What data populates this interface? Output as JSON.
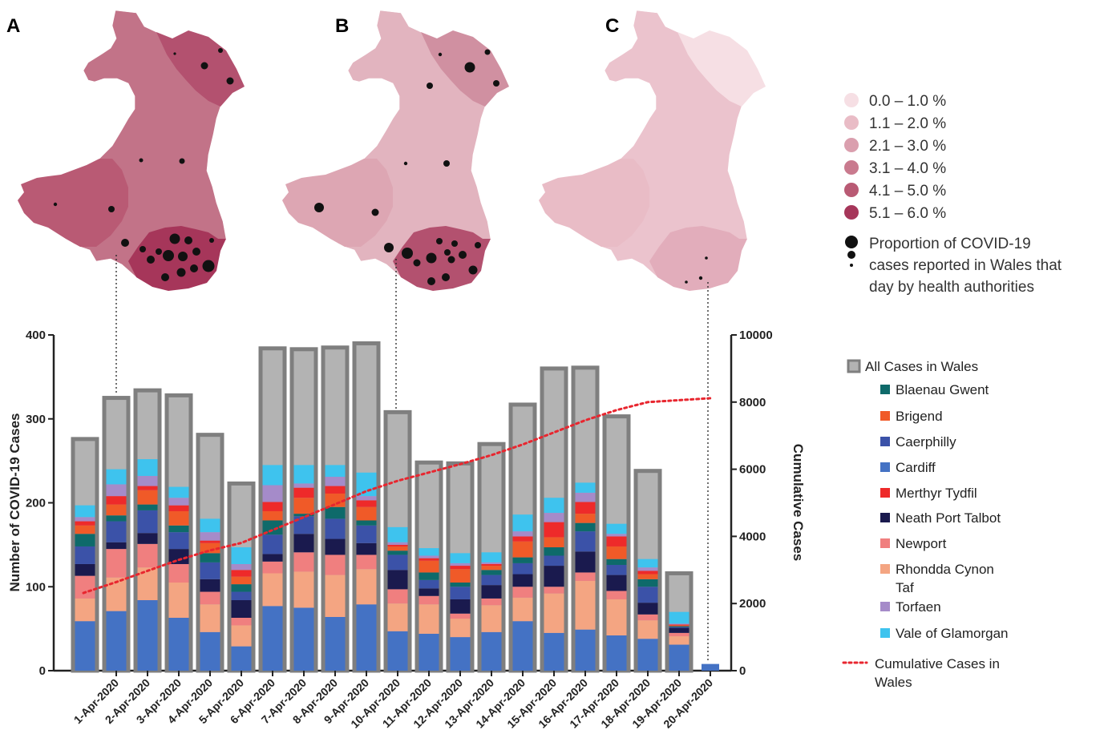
{
  "panels": [
    "A",
    "B",
    "C"
  ],
  "map_legend": {
    "bins": [
      {
        "label": "0.0 – 1.0 %",
        "color": "#f6dfe4"
      },
      {
        "label": "1.1 – 2.0 %",
        "color": "#e9bcc6"
      },
      {
        "label": "2.1 – 3.0 %",
        "color": "#da9fae"
      },
      {
        "label": "3.1 – 4.0 %",
        "color": "#c97a8e"
      },
      {
        "label": "4.1 – 5.0 %",
        "color": "#b95a74"
      },
      {
        "label": "5.1 – 6.0 %",
        "color": "#a6365a"
      }
    ],
    "proportion_label": [
      "Proportion of COVID-19",
      "cases reported in Wales that",
      "day by health authorities"
    ]
  },
  "chart_data": {
    "type": "bar",
    "categories": [
      "1-Apr-2020",
      "2-Apr-2020",
      "3-Apr-2020",
      "4-Apr-2020",
      "5-Apr-2020",
      "6-Apr-2020",
      "7-Apr-2020",
      "8-Apr-2020",
      "9-Apr-2020",
      "10-Apr-2020",
      "11-Apr-2020",
      "12-Apr-2020",
      "13-Apr-2020",
      "14-Apr-2020",
      "15-Apr-2020",
      "16-Apr-2020",
      "17-Apr-2020",
      "18-Apr-2020",
      "19-Apr-2020",
      "20-Apr-2020"
    ],
    "ylabel": "Number of COVID-19 Cases",
    "y2label": "Cumulative Cases",
    "ylim": [
      0,
      400
    ],
    "y2lim": [
      0,
      10000
    ],
    "yticks": [
      0,
      100,
      200,
      300,
      400
    ],
    "y2ticks": [
      0,
      2000,
      4000,
      6000,
      8000,
      10000
    ],
    "total_series": {
      "name": "All Cases in Wales",
      "color": "#b3b3b3",
      "border": "#7f7f7f",
      "values": [
        276,
        325,
        334,
        328,
        281,
        223,
        384,
        383,
        385,
        390,
        308,
        248,
        247,
        270,
        317,
        360,
        361,
        303,
        238,
        116
      ]
    },
    "series": [
      {
        "name": "Cardiff",
        "color": "#4472c4",
        "values": [
          59,
          71,
          84,
          63,
          46,
          29,
          77,
          75,
          64,
          79,
          47,
          44,
          40,
          46,
          59,
          45,
          49,
          42,
          38,
          31
        ]
      },
      {
        "name": "Rhondda Cynon Taf",
        "color": "#f4a582",
        "values": [
          27,
          40,
          39,
          42,
          33,
          25,
          39,
          43,
          50,
          42,
          33,
          35,
          22,
          32,
          28,
          47,
          58,
          43,
          22,
          10
        ]
      },
      {
        "name": "Newport",
        "color": "#f07f7f",
        "values": [
          27,
          34,
          28,
          22,
          15,
          9,
          14,
          23,
          24,
          17,
          17,
          10,
          6,
          8,
          13,
          8,
          10,
          10,
          7,
          4
        ]
      },
      {
        "name": "Neath Port Talbot",
        "color": "#1a1a4e",
        "values": [
          14,
          8,
          13,
          18,
          15,
          21,
          9,
          22,
          19,
          14,
          23,
          9,
          17,
          16,
          15,
          25,
          25,
          19,
          14,
          6
        ]
      },
      {
        "name": "Caerphilly",
        "color": "#3b52a8",
        "values": [
          21,
          25,
          27,
          20,
          20,
          10,
          23,
          21,
          24,
          21,
          18,
          10,
          15,
          12,
          13,
          12,
          24,
          12,
          19,
          1
        ]
      },
      {
        "name": "Blaenau Gwent",
        "color": "#0e6a6a",
        "values": [
          15,
          7,
          7,
          8,
          11,
          9,
          17,
          3,
          14,
          6,
          5,
          9,
          5,
          6,
          7,
          10,
          10,
          7,
          9,
          1
        ]
      },
      {
        "name": "Brigend",
        "color": "#f05a28",
        "values": [
          10,
          13,
          17,
          17,
          12,
          9,
          11,
          19,
          16,
          16,
          5,
          14,
          16,
          5,
          19,
          12,
          11,
          15,
          6,
          1
        ]
      },
      {
        "name": "Merthyr Tydfil",
        "color": "#ee2a2a",
        "values": [
          5,
          10,
          5,
          7,
          3,
          8,
          11,
          12,
          9,
          8,
          2,
          3,
          4,
          2,
          6,
          18,
          14,
          12,
          4,
          1
        ]
      },
      {
        "name": "Torfaen",
        "color": "#a58bc9",
        "values": [
          5,
          14,
          12,
          9,
          10,
          7,
          20,
          5,
          11,
          5,
          3,
          3,
          3,
          2,
          6,
          11,
          11,
          3,
          4,
          1
        ]
      },
      {
        "name": "Vale of Glamorgan",
        "color": "#3ec3ee",
        "values": [
          14,
          18,
          20,
          13,
          16,
          20,
          24,
          22,
          14,
          28,
          18,
          9,
          12,
          12,
          20,
          18,
          12,
          12,
          10,
          14
        ]
      }
    ],
    "cumulative": {
      "name": "Cumulative Cases in Wales",
      "color": "#e8262f",
      "values": [
        2314,
        2639,
        2973,
        3301,
        3582,
        3805,
        4189,
        4572,
        4957,
        5347,
        5655,
        5903,
        6150,
        6420,
        6737,
        7097,
        7458,
        7761,
        7999,
        8115
      ]
    }
  },
  "chart_legend": {
    "all_cases": "All Cases in Wales",
    "items": [
      "Blaenau Gwent",
      "Brigend",
      "Caerphilly",
      "Cardiff",
      "Merthyr Tydfil",
      "Neath Port Talbot",
      "Newport",
      "Rhondda Cynon",
      "Taf",
      "Torfaen",
      "Vale of Glamorgan"
    ],
    "item_colors": [
      "#0e6a6a",
      "#f05a28",
      "#3b52a8",
      "#4472c4",
      "#ee2a2a",
      "#1a1a4e",
      "#f07f7f",
      "#f4a582",
      "",
      "#a58bc9",
      "#3ec3ee"
    ],
    "cumulative": [
      "Cumulative Cases in",
      "Wales"
    ]
  }
}
